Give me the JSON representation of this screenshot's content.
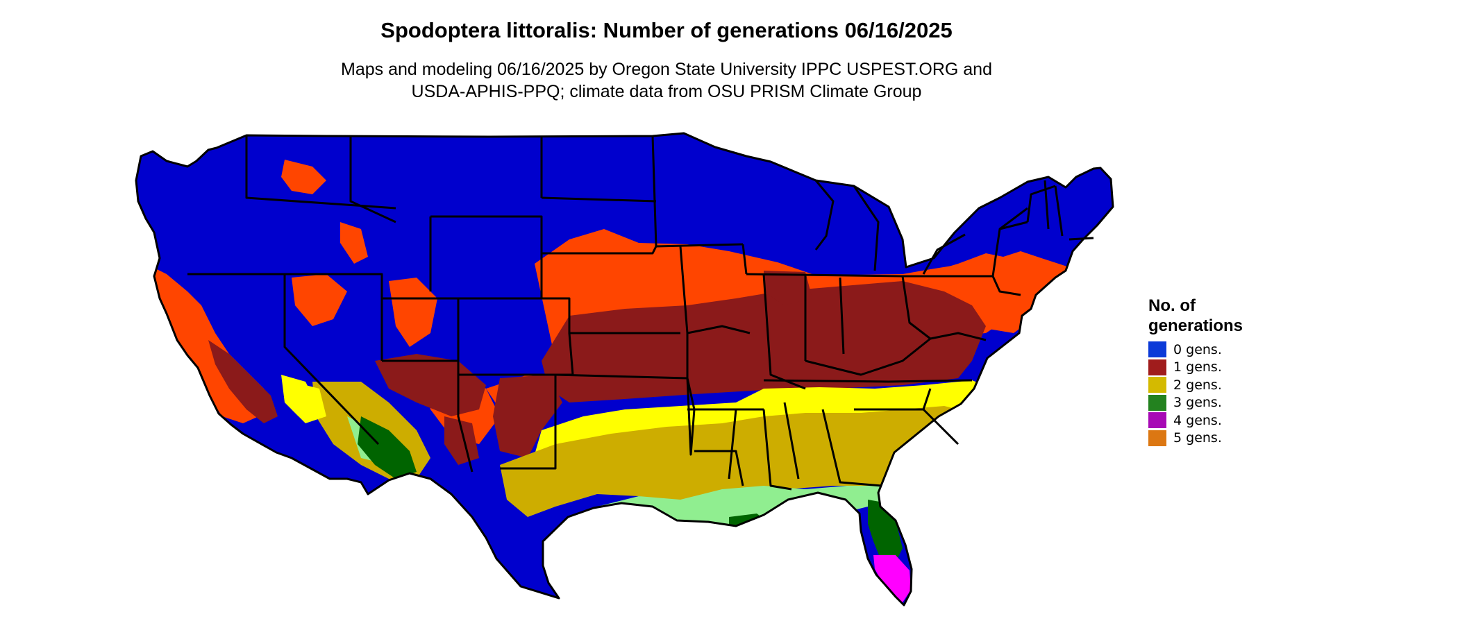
{
  "title": "Spodoptera littoralis: Number of generations 06/16/2025",
  "subtitle_lines": [
    "Maps and modeling 06/16/2025 by Oregon State University IPPC USPEST.ORG and",
    "USDA-APHIS-PPQ; climate data from OSU PRISM Climate Group"
  ],
  "legend": {
    "title_lines": [
      "No. of",
      "generations"
    ],
    "items": [
      {
        "label": "0 gens.",
        "color": "#0b3ad8"
      },
      {
        "label": "1 gens.",
        "color": "#a01c1c"
      },
      {
        "label": "2 gens.",
        "color": "#d4ba00"
      },
      {
        "label": "3 gens.",
        "color": "#23821f"
      },
      {
        "label": "4 gens.",
        "color": "#a70ab5"
      },
      {
        "label": "5 gens.",
        "color": "#dc7712"
      }
    ]
  },
  "map": {
    "region": "Contiguous United States",
    "zone_colors": {
      "0 gens.": "#0000cd",
      "1 gens.": "#8b1a1a",
      "1 gens. light": "#ff4500",
      "2 gens.": "#cdad00",
      "2 gens. light": "#ffff00",
      "3 gens.": "#006400",
      "3 gens. light": "#90ee90",
      "4 gens.": "#ff00ff"
    }
  }
}
